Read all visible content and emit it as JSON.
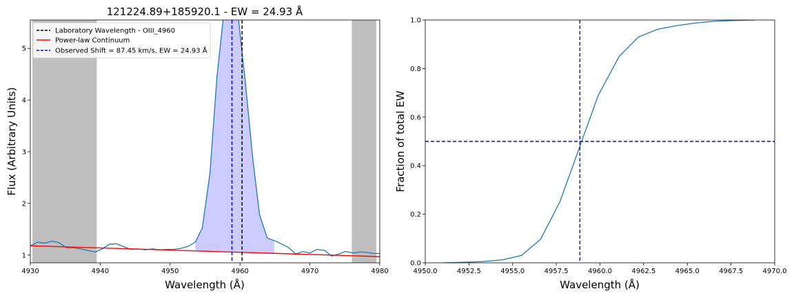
{
  "chart_data": [
    {
      "type": "line",
      "title": "121224.89+185920.1 - EW = 24.93 Å",
      "xlabel": "Wavelength (Å)",
      "ylabel": "Flux (Arbitrary Units)",
      "xlim": [
        4930,
        4980
      ],
      "ylim": [
        0.85,
        5.55
      ],
      "xticks": [
        4930,
        4940,
        4950,
        4960,
        4970,
        4980
      ],
      "yticks": [
        1,
        2,
        3,
        4,
        5
      ],
      "grid": false,
      "legend_position": "top-left",
      "shaded_regions": [
        {
          "x0": 4930.3,
          "x1": 4939.5,
          "color": "#bfbfbf"
        },
        {
          "x0": 4976.0,
          "x1": 4979.5,
          "color": "#bfbfbf"
        }
      ],
      "series": [
        {
          "kind": "spectrum",
          "color": "#1f77b4",
          "x": [
            4930.0,
            4931.1,
            4932.1,
            4933.1,
            4934.1,
            4935.2,
            4936.2,
            4937.2,
            4938.2,
            4939.3,
            4940.3,
            4941.3,
            4942.3,
            4943.4,
            4944.4,
            4945.4,
            4946.4,
            4947.5,
            4948.5,
            4949.5,
            4950.5,
            4951.6,
            4952.6,
            4953.6,
            4954.6,
            4955.7,
            4956.7,
            4957.7,
            4958.7,
            4959.8,
            4960.8,
            4961.8,
            4962.8,
            4963.9,
            4964.9,
            4965.9,
            4966.9,
            4968.0,
            4969.0,
            4970.0,
            4971.0,
            4972.1,
            4973.1,
            4974.1,
            4975.1,
            4976.2,
            4977.2,
            4978.2,
            4979.2,
            4980.0
          ],
          "y": [
            1.18,
            1.25,
            1.23,
            1.27,
            1.24,
            1.14,
            1.14,
            1.12,
            1.09,
            1.06,
            1.12,
            1.21,
            1.22,
            1.16,
            1.11,
            1.12,
            1.1,
            1.12,
            1.1,
            1.11,
            1.11,
            1.13,
            1.17,
            1.25,
            1.52,
            2.58,
            4.45,
            5.7,
            5.9,
            5.55,
            4.3,
            2.9,
            1.78,
            1.33,
            1.28,
            1.22,
            1.15,
            1.02,
            1.07,
            1.04,
            1.11,
            1.09,
            0.98,
            1.02,
            1.07,
            1.04,
            1.06,
            1.05,
            1.03,
            1.03
          ]
        },
        {
          "name": "Power-law Continuum",
          "kind": "continuum",
          "color": "#ff0000",
          "x": [
            4930,
            4980
          ],
          "y": [
            1.18,
            0.97
          ]
        }
      ],
      "vlines": [
        {
          "name": "Laboratory Wavelength - OIII_4960",
          "x": 4960.3,
          "color": "#000000",
          "dash": true
        },
        {
          "name": "Observed Shift = 87.45 km/s, EW = 24.93 Å",
          "x": 4958.85,
          "color": "#0000ff",
          "dash": true
        }
      ],
      "fill": {
        "x0": 4954.0,
        "x1": 4963.8,
        "color": "#ccccff"
      },
      "legend": [
        {
          "label": "Laboratory Wavelength - OIII_4960",
          "color": "#000000",
          "dash": true
        },
        {
          "label": "Power-law Continuum",
          "color": "#ff0000",
          "dash": false
        },
        {
          "label": "Observed Shift = 87.45 km/s, EW = 24.93 Å",
          "color": "#0000ff",
          "dash": true
        }
      ]
    },
    {
      "type": "line",
      "title": "",
      "xlabel": "Wavelength (Å)",
      "ylabel": "Fraction of total EW",
      "xlim": [
        4950,
        4970
      ],
      "ylim": [
        0,
        1
      ],
      "xticks": [
        4950.0,
        4952.5,
        4955.0,
        4957.5,
        4960.0,
        4962.5,
        4965.0,
        4967.5,
        4970.0
      ],
      "xtick_labels": [
        "4950.0",
        "4952.5",
        "4955.0",
        "4957.5",
        "4960.0",
        "4962.5",
        "4965.0",
        "4967.5",
        "4970.0"
      ],
      "yticks": [
        0.0,
        0.2,
        0.4,
        0.6,
        0.8,
        1.0
      ],
      "ytick_labels": [
        "0.0",
        "0.2",
        "0.4",
        "0.6",
        "0.8",
        "1.0"
      ],
      "grid": false,
      "series": [
        {
          "kind": "cumulative",
          "color": "#1f77b4",
          "x": [
            4951.0,
            4952.1,
            4953.2,
            4954.4,
            4955.5,
            4956.6,
            4957.7,
            4958.8,
            4959.9,
            4961.1,
            4962.2,
            4963.3,
            4964.4,
            4965.5,
            4966.6,
            4967.7,
            4968.9
          ],
          "y": [
            0.0,
            0.002,
            0.005,
            0.012,
            0.03,
            0.097,
            0.25,
            0.47,
            0.69,
            0.85,
            0.93,
            0.962,
            0.977,
            0.988,
            0.995,
            0.998,
            1.0
          ]
        }
      ],
      "vlines": [
        {
          "x": 4958.85,
          "color": "#0000ff",
          "dash": true
        }
      ],
      "hlines": [
        {
          "y": 0.5,
          "color": "#0000ff",
          "dash": true
        }
      ]
    }
  ]
}
